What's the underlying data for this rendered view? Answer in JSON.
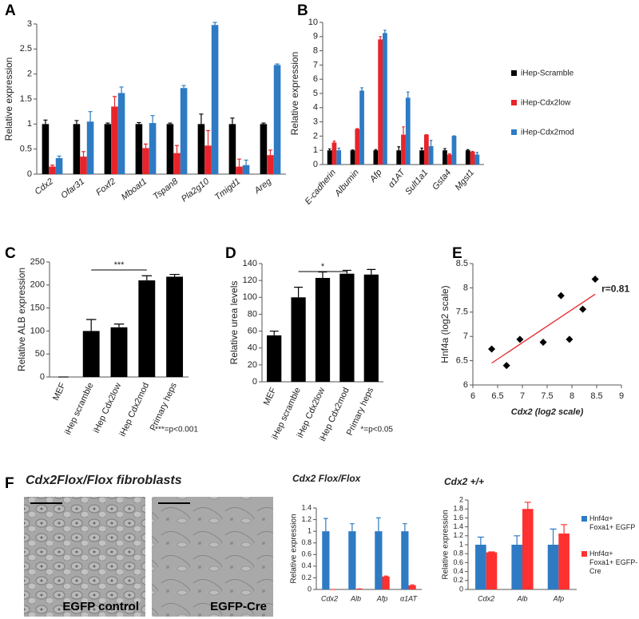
{
  "figure": {
    "panel_labels": [
      "A",
      "B",
      "C",
      "D",
      "E",
      "F"
    ],
    "section_title": "Cdx2Flox/Flox fibroblasts",
    "image_captions": [
      "EGFP control",
      "EGFP-Cre"
    ]
  },
  "chart_data": [
    {
      "type": "bar",
      "ylabel": "Relative expression",
      "categories": [
        "Cdx2",
        "Ofar31",
        "Foxf2",
        "Mboat1",
        "Tspan8",
        "Pla2g10",
        "Tmigd1",
        "Areg"
      ],
      "ylim": [
        0,
        3
      ],
      "yticks": [
        0,
        0.5,
        1,
        1.5,
        2,
        2.5,
        3
      ],
      "series": [
        {
          "color": "#000000",
          "values": [
            1,
            1,
            1,
            1,
            1,
            1,
            1,
            1
          ],
          "errors": [
            0.08,
            0.07,
            0.02,
            0.03,
            0.02,
            0.2,
            0.12,
            0.02
          ]
        },
        {
          "color": "#e8242a",
          "values": [
            0.15,
            0.35,
            1.35,
            0.52,
            0.42,
            0.57,
            0.15,
            0.38
          ],
          "errors": [
            0.03,
            0.1,
            0.2,
            0.08,
            0.15,
            0.3,
            0.15,
            0.1
          ]
        },
        {
          "color": "#2e7bc4",
          "values": [
            0.32,
            1.05,
            1.62,
            1.02,
            1.72,
            2.98,
            0.18,
            2.18
          ],
          "errors": [
            0.04,
            0.2,
            0.12,
            0.15,
            0.05,
            0.05,
            0.1,
            0.02
          ]
        }
      ]
    },
    {
      "type": "bar",
      "ylabel": "Relative expression",
      "categories": [
        "E-cadherin",
        "Albumin",
        "Afp",
        "α1AT",
        "Sult1a1",
        "Gsta4",
        "Mgst1"
      ],
      "ylim": [
        0,
        10
      ],
      "yticks": [
        0,
        1,
        2,
        3,
        4,
        5,
        6,
        7,
        8,
        9,
        10
      ],
      "series": [
        {
          "name": "iHep-Scramble",
          "color": "#000000",
          "values": [
            1,
            1,
            1,
            1,
            1,
            1,
            1
          ],
          "errors": [
            0.1,
            0.03,
            0.05,
            0.25,
            0.15,
            0.12,
            0.05
          ]
        },
        {
          "name": "iHep-Cdx2low",
          "color": "#e8242a",
          "values": [
            1.55,
            2.5,
            8.8,
            2.1,
            2.1,
            0.7,
            0.9
          ],
          "errors": [
            0.1,
            0.03,
            0.2,
            0.55,
            0,
            0.05,
            0.03
          ]
        },
        {
          "name": "iHep-Cdx2mod",
          "color": "#2e7bc4",
          "values": [
            1,
            5.2,
            9.25,
            4.7,
            1.3,
            2.02,
            0.7
          ],
          "errors": [
            0.15,
            0.2,
            0.2,
            0.4,
            0.4,
            0,
            0.15
          ]
        }
      ]
    },
    {
      "type": "bar",
      "ylabel": "Relative ALB expression",
      "categories": [
        "MEF",
        "iHep scramble",
        "iHep Cdx2low",
        "iHep Cdx2mod",
        "Primary heps"
      ],
      "values": [
        0,
        100,
        108,
        210,
        218
      ],
      "errors": [
        0,
        25,
        7,
        10,
        5
      ],
      "color": "#000000",
      "ylim": [
        0,
        250
      ],
      "yticks": [
        0,
        50,
        100,
        150,
        200,
        250
      ],
      "annotation": "***",
      "footnote": "***=p<0.001"
    },
    {
      "type": "bar",
      "ylabel": "Relative urea levels",
      "categories": [
        "MEF",
        "iHep scramble",
        "iHep Cdx2low",
        "iHep Cdx2mod",
        "Primary heps"
      ],
      "values": [
        55,
        100,
        123,
        128,
        127
      ],
      "errors": [
        5,
        12,
        7,
        4,
        6
      ],
      "color": "#000000",
      "ylim": [
        0,
        140
      ],
      "yticks": [
        0,
        20,
        40,
        60,
        80,
        100,
        120,
        140
      ],
      "annotation": "*",
      "footnote": "*=p<0.05"
    },
    {
      "type": "scatter",
      "xlabel": "Cdx2 (log2 scale)",
      "ylabel": "Hnf4a (log2 scale)",
      "x": [
        6.38,
        6.68,
        6.95,
        7.42,
        7.78,
        7.95,
        8.22,
        8.47
      ],
      "values": [
        6.74,
        6.4,
        6.94,
        6.88,
        7.84,
        6.94,
        7.56,
        8.18
      ],
      "color": "#000000",
      "xlim": [
        6,
        9
      ],
      "xticks": [
        6,
        6.5,
        7,
        7.5,
        8,
        8.5,
        9
      ],
      "ylim": [
        6,
        8.5
      ],
      "yticks": [
        6,
        6.5,
        7,
        7.5,
        8,
        8.5
      ],
      "trendline": {
        "x": [
          6.38,
          8.47
        ],
        "values": [
          6.45,
          7.87
        ],
        "color": "#e8242a",
        "label": "r=0.81"
      }
    },
    {
      "type": "bar",
      "title": "Cdx2 Flox/Flox",
      "ylabel": "Relative expression",
      "categories": [
        "Cdx2",
        "Alb",
        "Afp",
        "α1AT"
      ],
      "ylim": [
        0,
        1.4
      ],
      "yticks": [
        0,
        0.2,
        0.4,
        0.6,
        0.8,
        1,
        1.2,
        1.4
      ],
      "series": [
        {
          "color": "#2e7bc4",
          "values": [
            1,
            1,
            1,
            1
          ],
          "errors": [
            0.22,
            0.13,
            0.23,
            0.13
          ]
        },
        {
          "color": "#ff3030",
          "values": [
            0,
            0.01,
            0.22,
            0.07
          ],
          "errors": [
            0,
            0,
            0.01,
            0.01
          ]
        }
      ]
    },
    {
      "type": "bar",
      "title": "Cdx2 +/+",
      "ylabel": "Relative expression",
      "categories": [
        "Cdx2",
        "Alb",
        "Afp"
      ],
      "ylim": [
        0,
        2
      ],
      "yticks": [
        0,
        0.2,
        0.4,
        0.6,
        0.8,
        1,
        1.2,
        1.4,
        1.6,
        1.8,
        2
      ],
      "series": [
        {
          "name": "Hnf4α+ Foxa1+ EGFP",
          "color": "#2e7bc4",
          "values": [
            1,
            1,
            1
          ],
          "errors": [
            0.17,
            0.2,
            0.35
          ]
        },
        {
          "name": "Hnf4α+ Foxa1+ EGFP-Cre",
          "color": "#ff3030",
          "values": [
            0.83,
            1.8,
            1.25
          ],
          "errors": [
            0.01,
            0.15,
            0.2
          ]
        }
      ]
    }
  ]
}
